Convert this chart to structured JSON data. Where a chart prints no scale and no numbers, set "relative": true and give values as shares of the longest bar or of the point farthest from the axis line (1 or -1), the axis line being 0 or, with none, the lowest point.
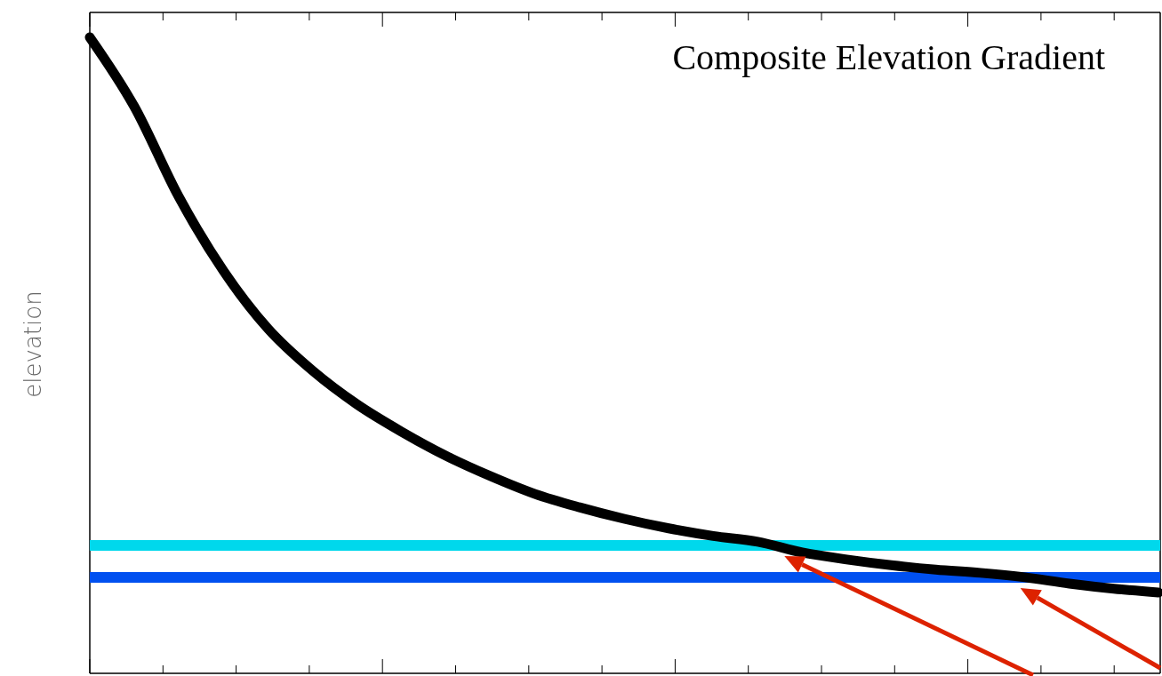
{
  "chart_data": {
    "type": "line",
    "title": "Composite Elevation Gradient",
    "ylabel": "elevation",
    "relative": true,
    "categories": [
      null,
      null,
      null,
      null,
      null,
      null,
      null,
      null,
      null,
      null,
      null,
      null,
      null,
      null,
      null,
      null,
      null,
      null,
      null,
      null,
      null,
      null,
      null,
      null,
      null
    ],
    "series": [
      {
        "color": "#000000",
        "values": [
          1.0,
          0.891,
          0.749,
          0.633,
          0.542,
          0.476,
          0.423,
          0.38,
          0.342,
          0.31,
          0.282,
          0.261,
          0.243,
          0.228,
          0.216,
          0.207,
          0.19,
          0.179,
          0.17,
          0.163,
          0.158,
          0.151,
          0.141,
          0.133,
          0.127
        ]
      }
    ],
    "ref_lines": [
      {
        "axis": "y",
        "value": 0.201,
        "color": "#00d8ec"
      },
      {
        "axis": "y",
        "value": 0.151,
        "color": "#0050f0"
      }
    ],
    "marker": "none",
    "line_style": "solid"
  }
}
